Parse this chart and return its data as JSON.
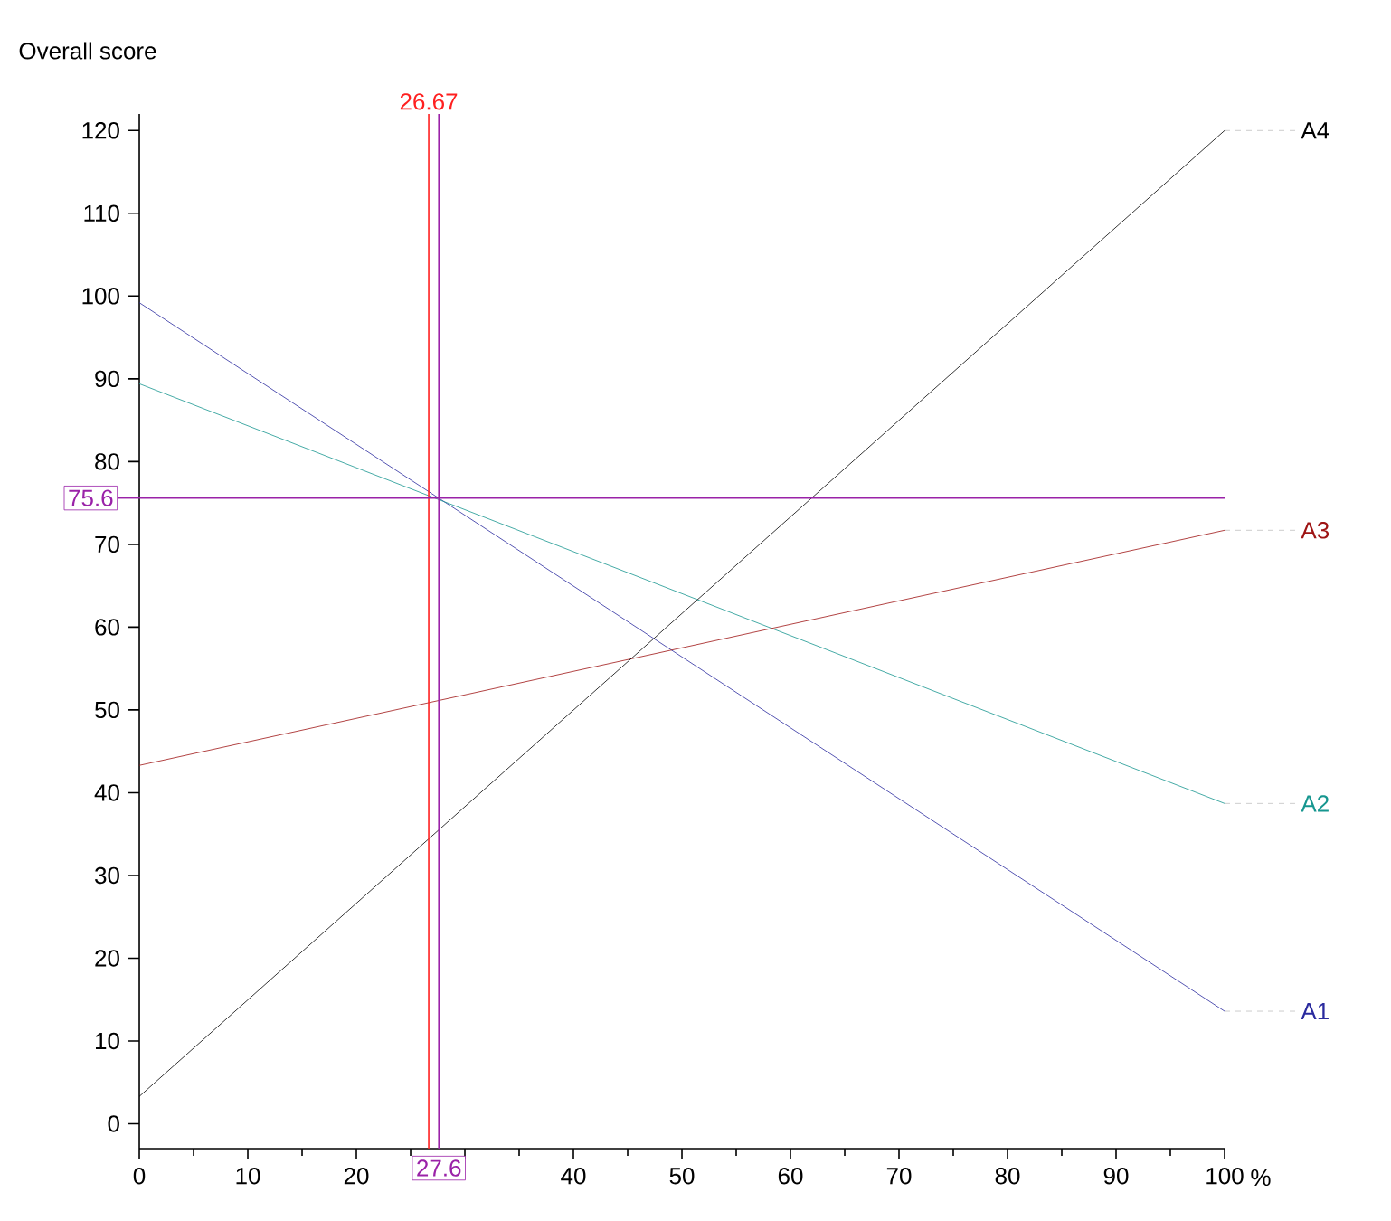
{
  "chart_data": {
    "type": "line",
    "ylabel": "Overall score",
    "xlabel": "%",
    "x": [
      0,
      100
    ],
    "series": [
      {
        "name": "A1",
        "color": "#2a2a9e",
        "values": [
          99.2,
          13.6
        ]
      },
      {
        "name": "A2",
        "color": "#16968f",
        "values": [
          89.4,
          38.7
        ]
      },
      {
        "name": "A3",
        "color": "#9e1414",
        "values": [
          43.3,
          71.7
        ]
      },
      {
        "name": "A4",
        "color": "#000000",
        "values": [
          3.3,
          120
        ]
      }
    ],
    "xlim": [
      0,
      100
    ],
    "ylim": [
      -3,
      122
    ],
    "xticks": [
      0,
      10,
      20,
      {
        "value": 30,
        "label": null
      },
      40,
      50,
      60,
      70,
      80,
      90,
      100
    ],
    "yticks": [
      0,
      10,
      20,
      30,
      40,
      50,
      60,
      70,
      80,
      90,
      100,
      110,
      120
    ],
    "ref_lines": [
      {
        "axis": "x",
        "value": 26.67,
        "label": "26.67",
        "color": "#ff2020"
      },
      {
        "axis": "x",
        "value": 27.6,
        "label": "27.6",
        "color": "#9a22a8"
      },
      {
        "axis": "y",
        "value": 75.6,
        "label": "75.6",
        "color": "#9a22a8"
      }
    ],
    "grid": false,
    "marker": "none",
    "line_style": "solid"
  }
}
